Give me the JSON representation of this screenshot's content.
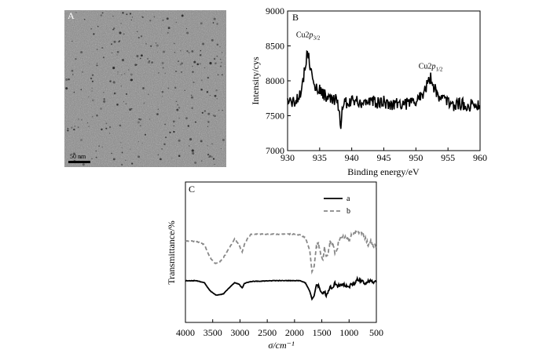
{
  "chart_data": [
    {
      "panel": "A",
      "type": "image",
      "scale_bar_label": "50 nm"
    },
    {
      "panel": "B",
      "type": "line",
      "xlabel": "Binding energy/eV",
      "ylabel": "Intensity/cys",
      "xlim": [
        930,
        960
      ],
      "ylim": [
        7000,
        9000
      ],
      "x_ticks": [
        "930",
        "935",
        "940",
        "945",
        "950",
        "955",
        "960"
      ],
      "y_ticks": [
        "7000",
        "7500",
        "8000",
        "8500",
        "9000"
      ],
      "annotations": [
        {
          "base": "Cu2",
          "italic": "p",
          "sub": "3/2",
          "x": 933.2,
          "y": 8600
        },
        {
          "base": "Cu2",
          "italic": "p",
          "sub": "1/2",
          "x": 952.3,
          "y": 8150
        }
      ],
      "series": [
        {
          "values_x": [
            930,
            930.5,
            931,
            931.5,
            932,
            932.5,
            932.8,
            933.1,
            933.4,
            933.7,
            934,
            934.5,
            935,
            935.5,
            936,
            936.5,
            937,
            937.5,
            938,
            938.3,
            938.6,
            939,
            939.5,
            940,
            941,
            942,
            943,
            944,
            945,
            946,
            947,
            948,
            949,
            950,
            950.5,
            951,
            951.5,
            952,
            952.3,
            952.6,
            953,
            953.5,
            954,
            955,
            956,
            957,
            958,
            959,
            960
          ],
          "values_y": [
            7700,
            7720,
            7680,
            7750,
            7850,
            8050,
            8250,
            8420,
            8300,
            8100,
            7950,
            7900,
            7880,
            7820,
            7780,
            7760,
            7700,
            7720,
            7600,
            7350,
            7650,
            7700,
            7680,
            7720,
            7700,
            7690,
            7710,
            7680,
            7700,
            7660,
            7690,
            7670,
            7680,
            7700,
            7760,
            7820,
            7880,
            7990,
            8050,
            7960,
            7880,
            7800,
            7750,
            7700,
            7650,
            7670,
            7640,
            7660,
            7650
          ]
        }
      ]
    },
    {
      "panel": "C",
      "type": "line",
      "xlabel": "σ/cm⁻¹",
      "ylabel": "Transmittance/%",
      "xlim": [
        4000,
        500
      ],
      "x_ticks": [
        "4000",
        "3500",
        "3000",
        "2500",
        "2000",
        "1500",
        "1000",
        "500"
      ],
      "legend_position": "top-right",
      "series": [
        {
          "name": "a",
          "style": "solid",
          "color": "#000000",
          "x": [
            4000,
            3800,
            3650,
            3550,
            3450,
            3380,
            3300,
            3200,
            3100,
            3020,
            2960,
            2920,
            2870,
            2800,
            2600,
            2400,
            2200,
            2000,
            1900,
            1800,
            1720,
            1680,
            1640,
            1600,
            1560,
            1520,
            1480,
            1450,
            1420,
            1390,
            1350,
            1300,
            1260,
            1220,
            1180,
            1120,
            1050,
            1000,
            960,
            900,
            850,
            800,
            750,
            700,
            650,
            600,
            550,
            500
          ],
          "y": [
            25,
            25,
            30,
            48,
            58,
            58,
            55,
            42,
            30,
            33,
            42,
            32,
            29,
            27,
            26,
            25,
            25,
            25,
            25,
            30,
            50,
            68,
            60,
            35,
            38,
            50,
            55,
            48,
            60,
            55,
            38,
            44,
            30,
            38,
            36,
            33,
            37,
            40,
            33,
            32,
            22,
            25,
            27,
            34,
            26,
            25,
            30,
            27
          ]
        },
        {
          "name": "b",
          "style": "dashed",
          "color": "#888888",
          "x": [
            4000,
            3800,
            3650,
            3550,
            3450,
            3380,
            3300,
            3200,
            3100,
            3020,
            2960,
            2920,
            2870,
            2800,
            2600,
            2400,
            2200,
            2000,
            1900,
            1800,
            1720,
            1680,
            1640,
            1600,
            1560,
            1520,
            1480,
            1450,
            1420,
            1390,
            1350,
            1300,
            1260,
            1220,
            1180,
            1120,
            1050,
            1000,
            960,
            900,
            850,
            800,
            750,
            700,
            650,
            600,
            550,
            500
          ],
          "y": [
            25,
            25,
            30,
            48,
            57,
            55,
            48,
            35,
            22,
            30,
            40,
            30,
            22,
            15,
            15,
            15,
            15,
            15,
            16,
            20,
            38,
            68,
            60,
            32,
            28,
            45,
            50,
            35,
            48,
            45,
            25,
            28,
            40,
            38,
            22,
            18,
            20,
            24,
            16,
            14,
            12,
            10,
            14,
            20,
            30,
            25,
            32,
            30
          ]
        }
      ]
    }
  ]
}
